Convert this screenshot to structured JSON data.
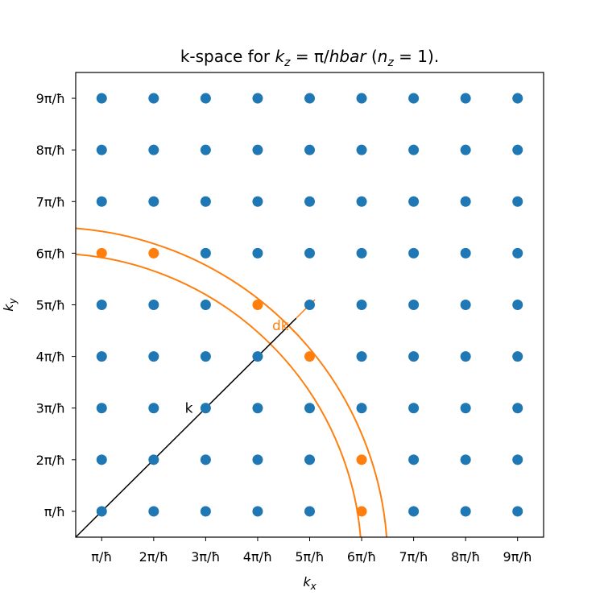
{
  "chart_data": {
    "type": "scatter",
    "title": {
      "prefix": "k-space for ",
      "var": "k",
      "var_sub": "z",
      "eq": " = π/",
      "eq_var": "hbar",
      "paren_open": " (",
      "n_var": "n",
      "n_sub": "z",
      "paren_rest": " = 1)."
    },
    "xlabel": {
      "var": "k",
      "sub": "x"
    },
    "ylabel": {
      "var": "k",
      "sub": "y"
    },
    "x_ticks": [
      {
        "value": 1,
        "label": "π/ħ"
      },
      {
        "value": 2,
        "label": "2π/ħ"
      },
      {
        "value": 3,
        "label": "3π/ħ"
      },
      {
        "value": 4,
        "label": "4π/ħ"
      },
      {
        "value": 5,
        "label": "5π/ħ"
      },
      {
        "value": 6,
        "label": "6π/ħ"
      },
      {
        "value": 7,
        "label": "7π/ħ"
      },
      {
        "value": 8,
        "label": "8π/ħ"
      },
      {
        "value": 9,
        "label": "9π/ħ"
      }
    ],
    "y_ticks": [
      {
        "value": 1,
        "label": "π/ħ"
      },
      {
        "value": 2,
        "label": "2π/ħ"
      },
      {
        "value": 3,
        "label": "3π/ħ"
      },
      {
        "value": 4,
        "label": "4π/ħ"
      },
      {
        "value": 5,
        "label": "5π/ħ"
      },
      {
        "value": 6,
        "label": "6π/ħ"
      },
      {
        "value": 7,
        "label": "7π/ħ"
      },
      {
        "value": 8,
        "label": "8π/ħ"
      },
      {
        "value": 9,
        "label": "9π/ħ"
      }
    ],
    "xlim": [
      0.5,
      9.5
    ],
    "ylim": [
      0.5,
      9.5
    ],
    "grid": false,
    "lattice": {
      "x_range": [
        1,
        9
      ],
      "y_range": [
        1,
        9
      ]
    },
    "highlighted_points": [
      [
        1,
        6
      ],
      [
        2,
        6
      ],
      [
        4,
        5
      ],
      [
        5,
        4
      ],
      [
        6,
        2
      ],
      [
        6,
        1
      ]
    ],
    "shell": {
      "inner_radius": 6.0,
      "outer_radius": 6.5
    },
    "k_vector": {
      "label": "k",
      "from": [
        0.5,
        0.5
      ],
      "to": [
        4.74,
        4.74
      ],
      "label_at": [
        2.6,
        3.0
      ]
    },
    "dk_marker": {
      "label": "dk",
      "from": [
        4.74,
        4.74
      ],
      "to": [
        5.1,
        5.1
      ],
      "label_at": [
        4.28,
        4.6
      ]
    },
    "colors": {
      "lattice": "#1f77b4",
      "highlight": "#ff7f0e",
      "shell": "#ff7f0e",
      "k_vector": "#000000",
      "axes": "#000000"
    }
  }
}
